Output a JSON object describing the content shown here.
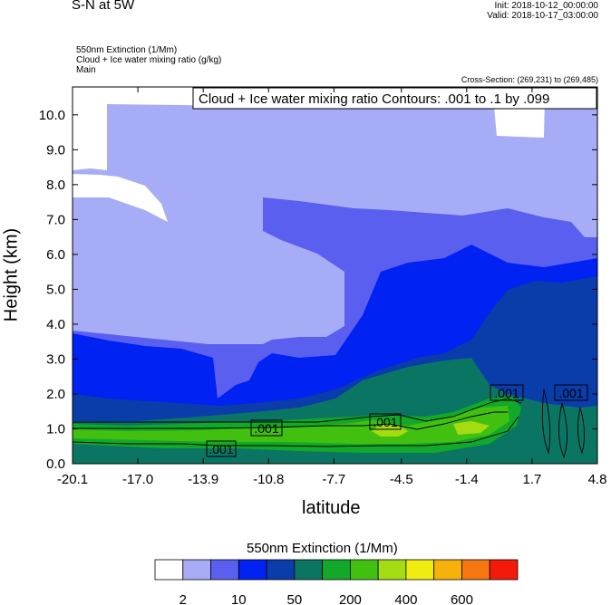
{
  "header": {
    "title": "S-N at 5W",
    "init": "Init: 2018-10-12_00:00:00",
    "valid": "Valid: 2018-10-17_03:00:00",
    "line1": "550nm Extinction   (1/Mm)",
    "line2": "Cloud + Ice water mixing ratio   (g/kg)",
    "line3": "Main",
    "cross_section": "Cross-Section: (269,231) to (269,485)"
  },
  "chart_data": {
    "type": "heatmap",
    "title": "",
    "xlabel": "latitude",
    "ylabel": "Height (km)",
    "xlim": [
      -20.1,
      4.8
    ],
    "ylim": [
      0,
      10.8
    ],
    "x_ticks": [
      "-20.1",
      "-17.0",
      "-13.9",
      "-10.8",
      "-7.7",
      "-4.5",
      "-1.4",
      "1.7",
      "4.8"
    ],
    "y_ticks": [
      "0.0",
      "1.0",
      "2.0",
      "3.0",
      "4.0",
      "5.0",
      "6.0",
      "7.0",
      "8.0",
      "9.0",
      "10.0"
    ],
    "contour_info": "Cloud + Ice water mixing ratio Contours: .001 to .1 by .099",
    "contour_labels": [
      ".001",
      ".001",
      ".001",
      ".001",
      ".001"
    ],
    "colorbar": {
      "title": "550nm Extinction  (1/Mm)",
      "colors": [
        "#ffffff",
        "#a6acf5",
        "#5b5ff0",
        "#0022f2",
        "#0a3caa",
        "#0b7563",
        "#12a82a",
        "#42c010",
        "#a3dc10",
        "#f0ec10",
        "#f6b20a",
        "#f67610",
        "#f31a0c"
      ],
      "labels": [
        "2",
        "10",
        "50",
        "200",
        "400",
        "600"
      ]
    },
    "grid": false
  }
}
